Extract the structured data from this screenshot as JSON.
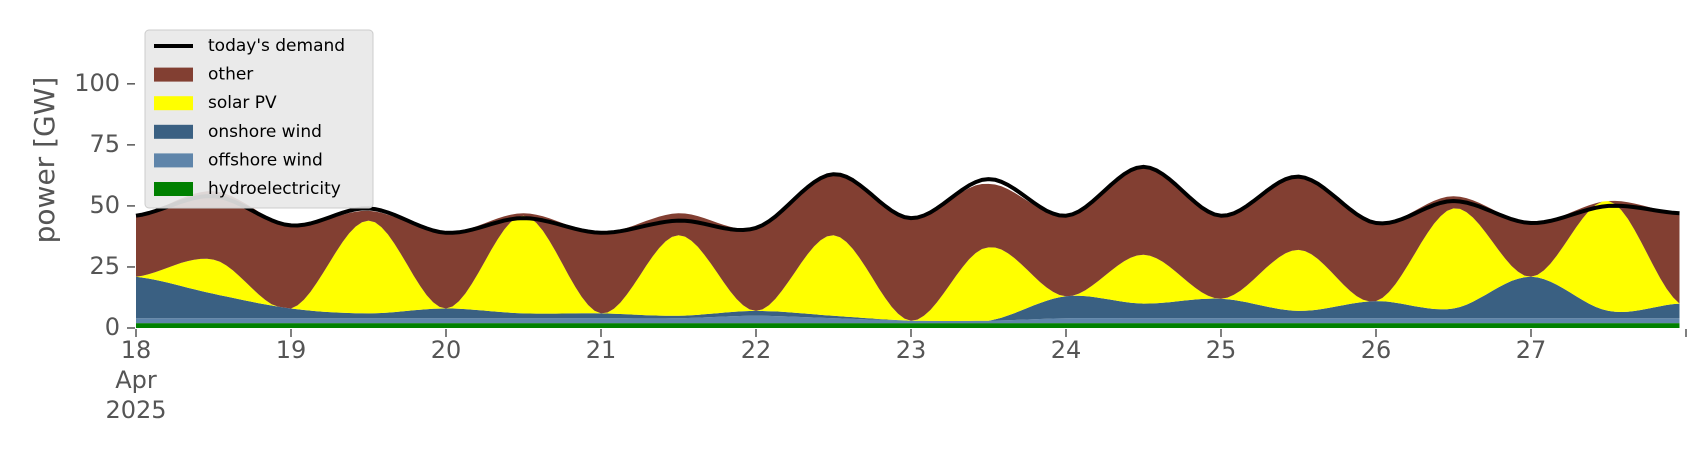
{
  "chart_data": {
    "type": "area",
    "title": "",
    "xlabel": "",
    "ylabel": "power [GW]",
    "ylim": [
      0,
      120
    ],
    "xlim": [
      "2025-04-18",
      "2025-04-28"
    ],
    "grid": false,
    "legend": "top-left",
    "y_ticks": [
      0,
      25,
      50,
      75,
      100
    ],
    "x_ticks": [
      {
        "day": "18",
        "month": "Apr",
        "year": "2025"
      },
      {
        "day": "19"
      },
      {
        "day": "20"
      },
      {
        "day": "21"
      },
      {
        "day": "22"
      },
      {
        "day": "23"
      },
      {
        "day": "24"
      },
      {
        "day": "25"
      },
      {
        "day": "26"
      },
      {
        "day": "27"
      }
    ],
    "x": [
      "2025-04-18 00:00",
      "2025-04-18 12:00",
      "2025-04-19 00:00",
      "2025-04-19 12:00",
      "2025-04-20 00:00",
      "2025-04-20 12:00",
      "2025-04-21 00:00",
      "2025-04-21 12:00",
      "2025-04-22 00:00",
      "2025-04-22 12:00",
      "2025-04-23 00:00",
      "2025-04-23 12:00",
      "2025-04-24 00:00",
      "2025-04-24 12:00",
      "2025-04-25 00:00",
      "2025-04-25 12:00",
      "2025-04-26 00:00",
      "2025-04-26 12:00",
      "2025-04-27 00:00",
      "2025-04-27 12:00",
      "2025-04-27 23:00"
    ],
    "series": [
      {
        "name": "hydroelectricity",
        "kind": "area",
        "color": "#008000",
        "values": [
          2,
          2,
          2,
          2,
          2,
          2,
          2,
          2,
          2,
          2,
          2,
          2,
          2,
          2,
          2,
          2,
          2,
          2,
          2,
          2,
          2
        ]
      },
      {
        "name": "offshore wind",
        "kind": "area",
        "color": "#5f85aa",
        "values": [
          2,
          2,
          2,
          2,
          2,
          2,
          2,
          2,
          3,
          2,
          1,
          1,
          2,
          2,
          2,
          2,
          2,
          2,
          2,
          2,
          2
        ]
      },
      {
        "name": "onshore wind",
        "kind": "area",
        "color": "#3a6082",
        "values": [
          17,
          10,
          4,
          2,
          4,
          2,
          2,
          1,
          2,
          1,
          0,
          0,
          9,
          6,
          8,
          3,
          7,
          4,
          17,
          3,
          6
        ]
      },
      {
        "name": "solar PV",
        "kind": "area",
        "color": "#ffff00",
        "values": [
          0,
          14,
          0,
          38,
          0,
          40,
          0,
          33,
          0,
          33,
          0,
          30,
          0,
          20,
          0,
          25,
          0,
          41,
          0,
          45,
          0
        ]
      },
      {
        "name": "other",
        "kind": "area",
        "color": "#823f32",
        "values": [
          25,
          28,
          34,
          4,
          31,
          1,
          33,
          9,
          34,
          25,
          42,
          26,
          33,
          36,
          34,
          30,
          32,
          5,
          22,
          0,
          37
        ]
      },
      {
        "name": "today's demand",
        "kind": "line",
        "color": "#000000",
        "values": [
          46,
          54,
          42,
          49,
          39,
          45,
          39,
          44,
          41,
          63,
          45,
          61,
          46,
          66,
          46,
          62,
          43,
          52,
          43,
          50,
          47
        ]
      }
    ]
  }
}
